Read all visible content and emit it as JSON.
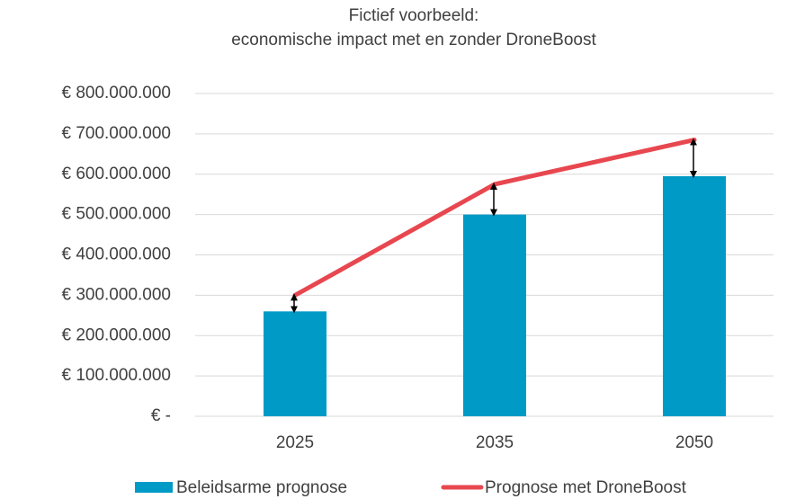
{
  "chart_data": {
    "type": "bar",
    "title": [
      "Fictief voorbeeld:",
      "economische impact met en zonder DroneBoost"
    ],
    "categories": [
      "2025",
      "2035",
      "2050"
    ],
    "series": [
      {
        "name": "Beleidsarme prognose",
        "color": "#009ac7",
        "type": "bar",
        "values": [
          260000000,
          500000000,
          595000000
        ]
      },
      {
        "name": "Prognose met DroneBoost",
        "color": "#e8474f",
        "type": "line",
        "values": [
          300000000,
          575000000,
          685000000
        ]
      }
    ],
    "ylim": [
      0,
      800000000
    ],
    "yticks": [
      {
        "value": 0,
        "label": "€ -"
      },
      {
        "value": 100000000,
        "label": "€ 100.000.000"
      },
      {
        "value": 200000000,
        "label": "€ 200.000.000"
      },
      {
        "value": 300000000,
        "label": "€ 300.000.000"
      },
      {
        "value": 400000000,
        "label": "€ 400.000.000"
      },
      {
        "value": 500000000,
        "label": "€ 500.000.000"
      },
      {
        "value": 600000000,
        "label": "€ 600.000.000"
      },
      {
        "value": 700000000,
        "label": "€ 700.000.000"
      },
      {
        "value": 800000000,
        "label": "€ 800.000.000"
      }
    ],
    "grid": true,
    "legend": "bottom"
  }
}
